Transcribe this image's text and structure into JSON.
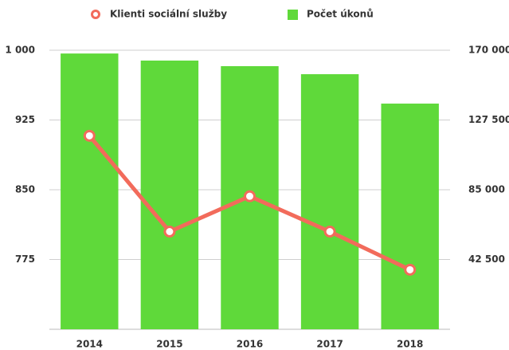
{
  "chart_data": {
    "type": "combo",
    "categories": [
      "2014",
      "2015",
      "2016",
      "2017",
      "2018"
    ],
    "series": [
      {
        "name": "Klienti sociální služby",
        "type": "line",
        "color": "#f26b5b",
        "axis": "y",
        "values": [
          908,
          805,
          843,
          805,
          764
        ]
      },
      {
        "name": "Počet úkonů",
        "type": "bar",
        "color": "#5fd93a",
        "axis": "y2",
        "values": [
          168000,
          163700,
          160300,
          155400,
          137500
        ]
      }
    ],
    "ylim": [
      700,
      1000
    ],
    "yticks": [
      {
        "value": 1000,
        "label": "1 000"
      },
      925,
      850,
      775
    ],
    "y2lim": [
      0,
      170000
    ],
    "y2ticks": [
      {
        "value": 170000,
        "label": "170 000"
      },
      {
        "value": 127500,
        "label": "127 500"
      },
      {
        "value": 85000,
        "label": "85 000"
      },
      {
        "value": 42500,
        "label": "42 500"
      }
    ],
    "grid": true,
    "legend": "top"
  }
}
